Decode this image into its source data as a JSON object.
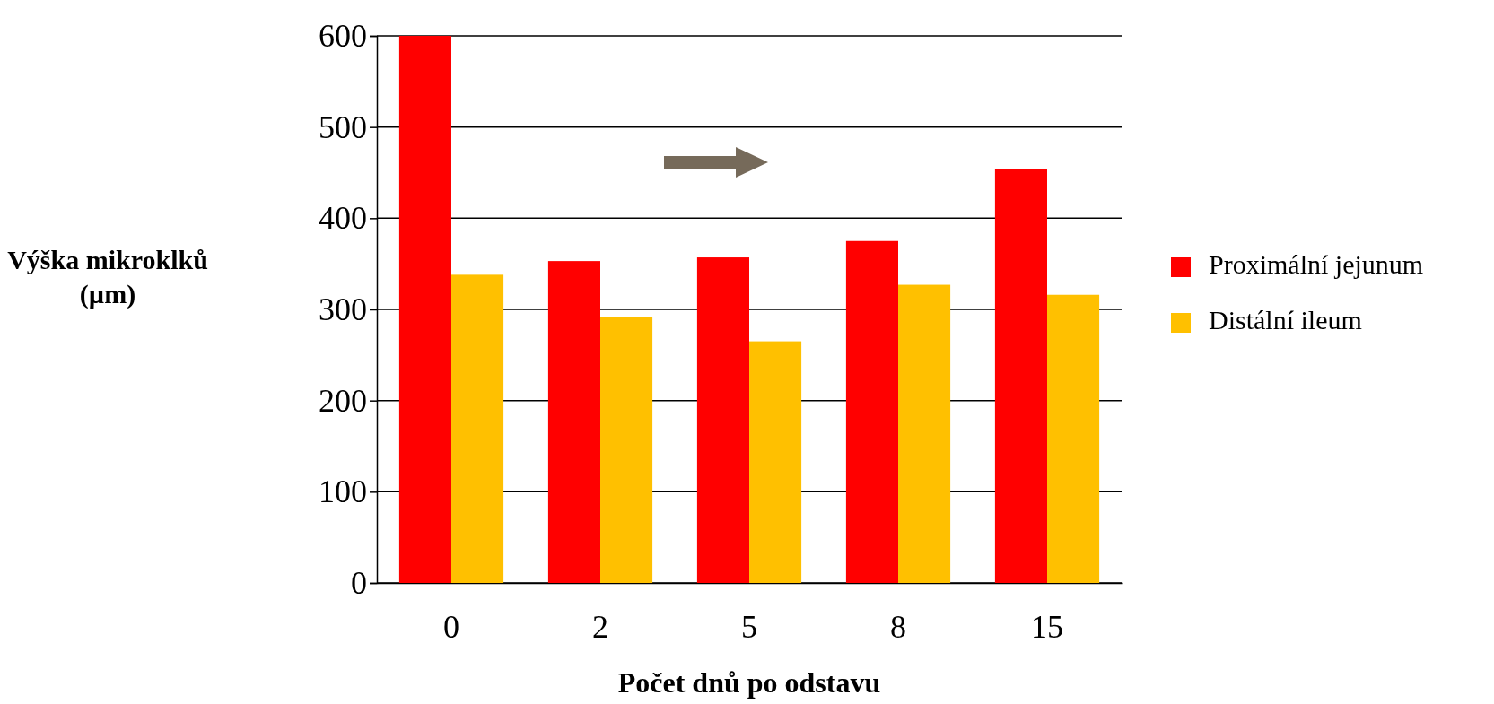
{
  "chart_data": {
    "type": "bar",
    "xlabel": "Počet dnů po odstavu",
    "ylabel": "Výška mikroklků (µm)",
    "categories": [
      "0",
      "2",
      "5",
      "8",
      "15"
    ],
    "series": [
      {
        "name": "Proximální jejunum",
        "color": "#ff0000",
        "values": [
          600,
          353,
          357,
          375,
          454
        ]
      },
      {
        "name": "Distální ileum",
        "color": "#ffc000",
        "values": [
          338,
          292,
          265,
          327,
          316
        ]
      }
    ],
    "ylim": [
      0,
      600
    ],
    "yticks": [
      0,
      100,
      200,
      300,
      400,
      500,
      600
    ],
    "grid": "y",
    "legend": "right"
  }
}
